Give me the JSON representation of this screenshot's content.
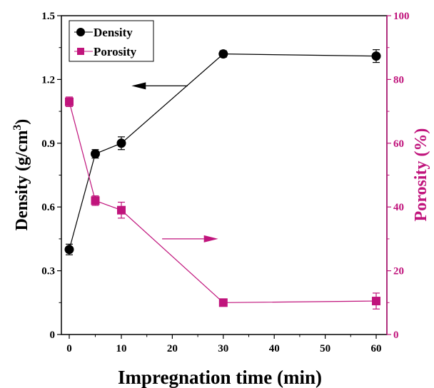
{
  "chart_data": {
    "type": "line",
    "xlabel": "Impregnation time (min)",
    "ylabel_left": "Density (g/cm",
    "ylabel_left_sup": "3",
    "ylabel_left_close": ")",
    "ylabel_right": "Porosity (%)",
    "x_tick_labels": [
      "0",
      "10",
      "20",
      "30",
      "40",
      "50",
      "60"
    ],
    "y_left_ticks": [
      "0",
      "0.3",
      "0.6",
      "0.9",
      "1.2",
      "1.5"
    ],
    "y_right_ticks": [
      "0",
      "20",
      "40",
      "60",
      "80",
      "100"
    ],
    "y_left_lim": [
      0,
      1.5
    ],
    "y_right_lim": [
      0,
      100
    ],
    "legend_position": "top-left",
    "series": [
      {
        "name": "Density",
        "axis": "left",
        "marker": "circle",
        "color": "#000000",
        "points": [
          {
            "x": 0,
            "y": 0.4,
            "err": 0.025
          },
          {
            "x": 5,
            "y": 0.85,
            "err": 0.02
          },
          {
            "x": 10,
            "y": 0.9,
            "err": 0.03
          },
          {
            "x": 30,
            "y": 1.32,
            "err": 0.015
          },
          {
            "x": 60,
            "y": 1.31,
            "err": 0.03
          }
        ]
      },
      {
        "name": "Porosity",
        "axis": "right",
        "marker": "square",
        "color": "#c0147c",
        "points": [
          {
            "x": 0,
            "y": 73,
            "err": 1.5
          },
          {
            "x": 5,
            "y": 42,
            "err": 1.5
          },
          {
            "x": 10,
            "y": 39,
            "err": 2.5
          },
          {
            "x": 30,
            "y": 10,
            "err": 0.8
          },
          {
            "x": 60,
            "y": 10.5,
            "err": 2.5
          }
        ]
      }
    ],
    "annotations": [
      {
        "type": "arrow",
        "direction": "left",
        "color": "#000000",
        "x_from": 23,
        "x_to": 12,
        "y_left": 1.17
      },
      {
        "type": "arrow",
        "direction": "right",
        "color": "#c0147c",
        "x_from": 18,
        "x_to": 29,
        "y_right": 30
      }
    ]
  }
}
